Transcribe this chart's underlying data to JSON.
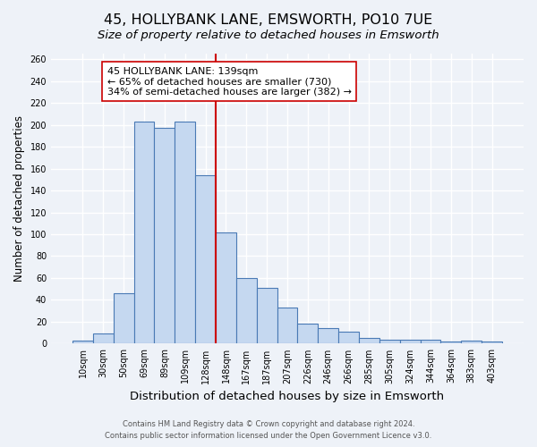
{
  "title": "45, HOLLYBANK LANE, EMSWORTH, PO10 7UE",
  "subtitle": "Size of property relative to detached houses in Emsworth",
  "xlabel": "Distribution of detached houses by size in Emsworth",
  "ylabel": "Number of detached properties",
  "categories": [
    "10sqm",
    "30sqm",
    "50sqm",
    "69sqm",
    "89sqm",
    "109sqm",
    "128sqm",
    "148sqm",
    "167sqm",
    "187sqm",
    "207sqm",
    "226sqm",
    "246sqm",
    "266sqm",
    "285sqm",
    "305sqm",
    "324sqm",
    "344sqm",
    "364sqm",
    "383sqm",
    "403sqm"
  ],
  "values": [
    3,
    9,
    46,
    203,
    197,
    203,
    154,
    102,
    60,
    51,
    33,
    18,
    14,
    11,
    5,
    4,
    4,
    4,
    2,
    3,
    2
  ],
  "bar_color": "#c5d8f0",
  "bar_edge_color": "#4a7ab5",
  "vline_x_idx": 6.5,
  "vline_color": "#cc0000",
  "annotation_title": "45 HOLLYBANK LANE: 139sqm",
  "annotation_line1": "← 65% of detached houses are smaller (730)",
  "annotation_line2": "34% of semi-detached houses are larger (382) →",
  "annotation_box_facecolor": "#ffffff",
  "annotation_box_edgecolor": "#cc0000",
  "ylim_max": 265,
  "yticks": [
    0,
    20,
    40,
    60,
    80,
    100,
    120,
    140,
    160,
    180,
    200,
    220,
    240,
    260
  ],
  "footer1": "Contains HM Land Registry data © Crown copyright and database right 2024.",
  "footer2": "Contains public sector information licensed under the Open Government Licence v3.0.",
  "background_color": "#eef2f8",
  "grid_color": "#ffffff",
  "title_fontsize": 11.5,
  "subtitle_fontsize": 9.5,
  "xlabel_fontsize": 9.5,
  "ylabel_fontsize": 8.5,
  "tick_fontsize": 7,
  "annotation_fontsize": 8,
  "footer_fontsize": 6
}
